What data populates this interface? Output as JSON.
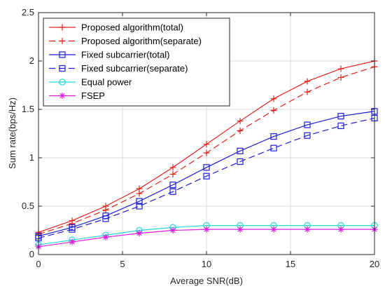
{
  "chart_data": {
    "type": "line",
    "xlabel": "Average SNR(dB)",
    "ylabel": "Sum rate(bps/Hz)",
    "xlim": [
      0,
      20
    ],
    "ylim": [
      0,
      2.5
    ],
    "x_ticks": [
      0,
      5,
      10,
      15,
      20
    ],
    "y_ticks": [
      0,
      0.5,
      1,
      1.5,
      2,
      2.5
    ],
    "x_tick_labels": [
      "0",
      "5",
      "10",
      "15",
      "20"
    ],
    "y_tick_labels": [
      "0",
      "0.5",
      "1",
      "1.5",
      "2",
      "2.5"
    ],
    "grid": true,
    "legend_position": "top-left",
    "x": [
      0,
      2,
      4,
      6,
      8,
      10,
      12,
      14,
      16,
      18,
      20
    ],
    "series": [
      {
        "name": "Proposed algorithm(total)",
        "color": "#e8201c",
        "dash": "solid",
        "marker": "plus",
        "values": [
          0.23,
          0.35,
          0.5,
          0.68,
          0.9,
          1.14,
          1.38,
          1.61,
          1.79,
          1.92,
          2.0
        ]
      },
      {
        "name": "Proposed algorithm(separate)",
        "color": "#e8201c",
        "dash": "dashed",
        "marker": "plus",
        "values": [
          0.21,
          0.32,
          0.46,
          0.63,
          0.83,
          1.05,
          1.28,
          1.49,
          1.68,
          1.83,
          1.94
        ]
      },
      {
        "name": "Fixed subcarrier(total)",
        "color": "#1c1cd8",
        "dash": "solid",
        "marker": "square",
        "values": [
          0.19,
          0.28,
          0.4,
          0.55,
          0.72,
          0.9,
          1.07,
          1.22,
          1.34,
          1.43,
          1.48
        ]
      },
      {
        "name": "Fixed subcarrier(separate)",
        "color": "#1c1cd8",
        "dash": "dashed",
        "marker": "square",
        "values": [
          0.17,
          0.26,
          0.37,
          0.5,
          0.65,
          0.81,
          0.96,
          1.1,
          1.23,
          1.33,
          1.41
        ]
      },
      {
        "name": "Equal power",
        "color": "#22d8d8",
        "dash": "solid",
        "marker": "circle",
        "values": [
          0.1,
          0.15,
          0.2,
          0.25,
          0.28,
          0.3,
          0.3,
          0.3,
          0.3,
          0.3,
          0.3
        ]
      },
      {
        "name": "FSEP",
        "color": "#e01ce0",
        "dash": "solid",
        "marker": "asterisk",
        "values": [
          0.08,
          0.13,
          0.18,
          0.22,
          0.25,
          0.26,
          0.26,
          0.26,
          0.26,
          0.26,
          0.26
        ]
      }
    ]
  }
}
